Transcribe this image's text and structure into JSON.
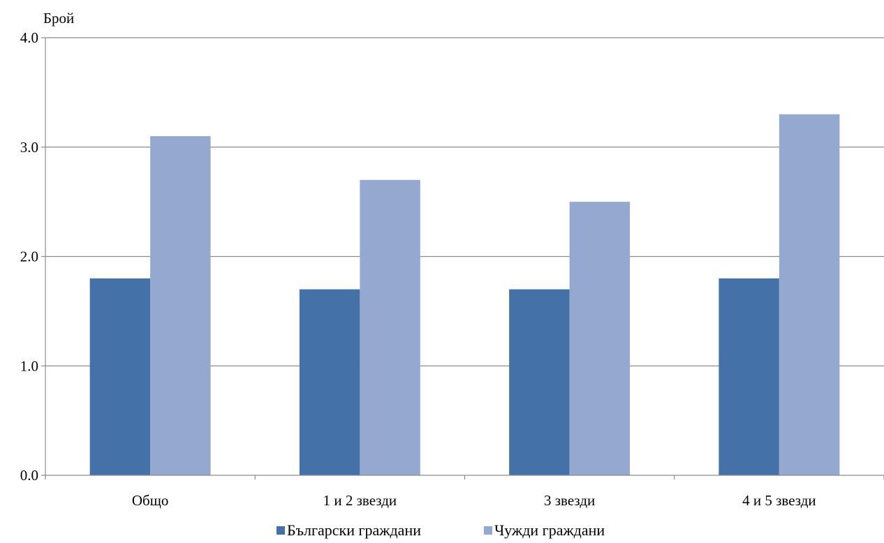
{
  "chart_data": {
    "type": "bar",
    "ylabel": "Брой",
    "ylim": [
      0,
      4
    ],
    "yticks": [
      "0.0",
      "1.0",
      "2.0",
      "3.0",
      "4.0"
    ],
    "grid": true,
    "legend_position": "bottom",
    "categories": [
      "Общо",
      "1 и 2 звезди",
      "3 звезди",
      "4 и 5 звезди"
    ],
    "series": [
      {
        "name": "Български граждани",
        "values": [
          1.8,
          1.7,
          1.7,
          1.8
        ],
        "color": "#4472a8"
      },
      {
        "name": "Чужди граждани",
        "values": [
          3.1,
          2.7,
          2.5,
          3.3
        ],
        "color": "#95a9d0"
      }
    ]
  }
}
